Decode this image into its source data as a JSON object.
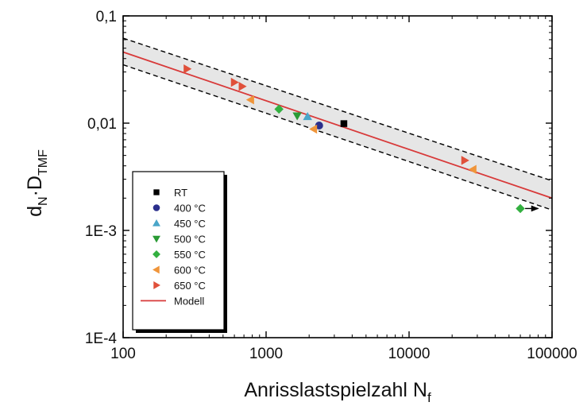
{
  "chart_data": {
    "type": "scatter",
    "title": "",
    "xlabel": "Anrisslastspielzahl N",
    "xlabel_sub": "f",
    "ylabel_parts": [
      "d",
      "N",
      "·D",
      "TMF"
    ],
    "x_scale": "log",
    "y_scale": "log",
    "xlim": [
      100,
      100000
    ],
    "ylim": [
      0.0001,
      0.1
    ],
    "x_ticks": [
      100,
      1000,
      10000,
      100000
    ],
    "x_tick_labels": [
      "100",
      "1000",
      "10000",
      "100000"
    ],
    "y_ticks": [
      0.0001,
      0.001,
      0.01,
      0.1
    ],
    "y_tick_labels": [
      "1E-4",
      "1E-3",
      "0,01",
      "0,1"
    ],
    "grid": false,
    "legend_position": "bottom-left",
    "series": [
      {
        "name": "RT",
        "marker": "square",
        "color": "#000000",
        "x": [
          3500
        ],
        "y": [
          0.0099
        ]
      },
      {
        "name": "400 °C",
        "marker": "circle",
        "color": "#2b2f8c",
        "x": [
          2350
        ],
        "y": [
          0.0095
        ]
      },
      {
        "name": "450 °C",
        "marker": "triangle-up",
        "color": "#4aa6c9",
        "x": [
          1950
        ],
        "y": [
          0.0115
        ]
      },
      {
        "name": "500 °C",
        "marker": "triangle-down",
        "color": "#2a9a35",
        "x": [
          1650
        ],
        "y": [
          0.0117
        ]
      },
      {
        "name": "550 °C",
        "marker": "diamond",
        "color": "#33b040",
        "x": [
          1230,
          60000
        ],
        "y": [
          0.0135,
          0.0016
        ]
      },
      {
        "name": "600 °C",
        "marker": "triangle-left",
        "color": "#f0953a",
        "x": [
          780,
          2150,
          28000
        ],
        "y": [
          0.0165,
          0.0088,
          0.0037
        ]
      },
      {
        "name": "650 °C",
        "marker": "triangle-right",
        "color": "#e0503a",
        "x": [
          280,
          600,
          680,
          24500
        ],
        "y": [
          0.032,
          0.024,
          0.022,
          0.0045
        ]
      },
      {
        "name": "Modell",
        "type": "line",
        "color": "#d83a3a",
        "x": [
          100,
          100000
        ],
        "y": [
          0.046,
          0.002
        ]
      }
    ],
    "scatter_bands": {
      "upper": {
        "x": [
          100,
          100000
        ],
        "y": [
          0.062,
          0.0029
        ]
      },
      "lower": {
        "x": [
          100,
          100000
        ],
        "y": [
          0.035,
          0.00155
        ]
      }
    },
    "annotations": [
      {
        "type": "arrow",
        "note": "runout",
        "x_from": 60000,
        "x_to": 80000,
        "y": 0.0016
      }
    ]
  }
}
